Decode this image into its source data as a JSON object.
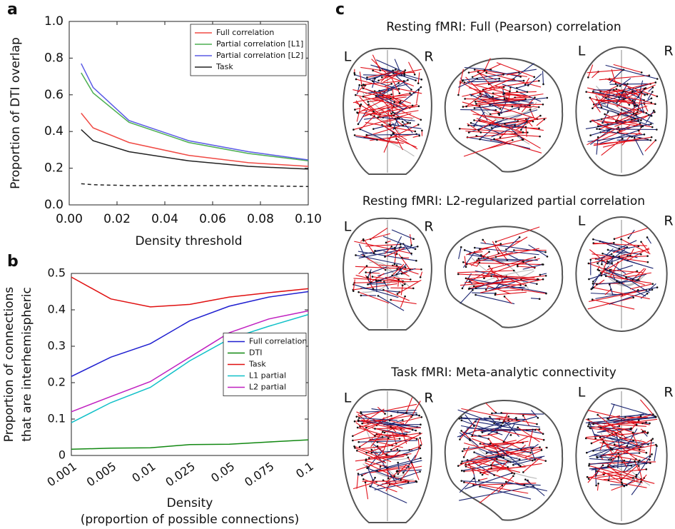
{
  "panel_labels": [
    "a",
    "b",
    "c"
  ],
  "chart_data": [
    {
      "type": "line",
      "xlabel": "Density threshold",
      "ylabel": "Proportion of DTI overlap",
      "x": [
        0.005,
        0.01,
        0.025,
        0.05,
        0.075,
        0.1
      ],
      "xlim": [
        0,
        0.1
      ],
      "ylim": [
        0,
        1
      ],
      "xticks": [
        {
          "value": 0,
          "label": "0.00"
        },
        {
          "value": 0.02,
          "label": "0.02"
        },
        {
          "value": 0.04,
          "label": "0.04"
        },
        {
          "value": 0.06,
          "label": "0.06"
        },
        {
          "value": 0.08,
          "label": "0.08"
        },
        {
          "value": 0.1,
          "label": "0.10"
        }
      ],
      "yticks": [
        {
          "value": 0,
          "label": "0.0"
        },
        {
          "value": 0.2,
          "label": "0.2"
        },
        {
          "value": 0.4,
          "label": "0.4"
        },
        {
          "value": 0.6,
          "label": "0.6"
        },
        {
          "value": 0.8,
          "label": "0.8"
        },
        {
          "value": 1,
          "label": "1.0"
        }
      ],
      "legend": "upper right",
      "series": [
        {
          "name": "Full correlation",
          "color": "#f04a44",
          "values": [
            0.5,
            0.42,
            0.34,
            0.27,
            0.23,
            0.21
          ]
        },
        {
          "name": "Partial correlation [L1]",
          "color": "#4caf50",
          "values": [
            0.72,
            0.61,
            0.45,
            0.34,
            0.28,
            0.24
          ]
        },
        {
          "name": "Partial correlation [L2]",
          "color": "#5a5ae6",
          "values": [
            0.77,
            0.64,
            0.46,
            0.35,
            0.29,
            0.245
          ]
        },
        {
          "name": "Task",
          "color": "#222222",
          "values": [
            0.41,
            0.35,
            0.29,
            0.24,
            0.21,
            0.195
          ]
        },
        {
          "color": "#222222",
          "dashed": true,
          "values": [
            0.115,
            0.11,
            0.105,
            0.105,
            0.105,
            0.1
          ]
        }
      ]
    },
    {
      "type": "line",
      "xlabel": [
        "Density",
        "(proportion of possible connections)"
      ],
      "ylabel": [
        "Proportion of connections",
        "that are interhemispheric"
      ],
      "categories": [
        "0.001",
        "0.005",
        "0.01",
        "0.025",
        "0.05",
        "0.075",
        "0.1"
      ],
      "ylim": [
        0,
        0.5
      ],
      "yticks": [
        0,
        0.1,
        0.2,
        0.3,
        0.4,
        0.5
      ],
      "legend": "center right",
      "series": [
        {
          "name": "Full correlation",
          "color": "#1f1fd0",
          "values": [
            0.217,
            0.27,
            0.307,
            0.37,
            0.41,
            0.435,
            0.45
          ]
        },
        {
          "name": "DTI",
          "color": "#118811",
          "values": [
            0.017,
            0.02,
            0.021,
            0.03,
            0.031,
            0.037,
            0.043
          ]
        },
        {
          "name": "Task",
          "color": "#e01010",
          "values": [
            0.49,
            0.43,
            0.408,
            0.415,
            0.435,
            0.447,
            0.458
          ]
        },
        {
          "name": "L1 partial",
          "color": "#10c0c8",
          "values": [
            0.09,
            0.145,
            0.187,
            0.26,
            0.32,
            0.355,
            0.387
          ]
        },
        {
          "name": "L2 partial",
          "color": "#c020c0",
          "values": [
            0.12,
            0.162,
            0.203,
            0.27,
            0.337,
            0.375,
            0.397
          ]
        }
      ]
    }
  ],
  "brain_panels": [
    {
      "title": "Resting fMRI: Full (Pearson) correlation",
      "left": "L",
      "right": "R"
    },
    {
      "title": "Resting fMRI: L2-regularized partial correlation",
      "left": "L",
      "right": "R"
    },
    {
      "title": "Task fMRI: Meta-analytic connectivity",
      "left": "L",
      "right": "R"
    }
  ]
}
